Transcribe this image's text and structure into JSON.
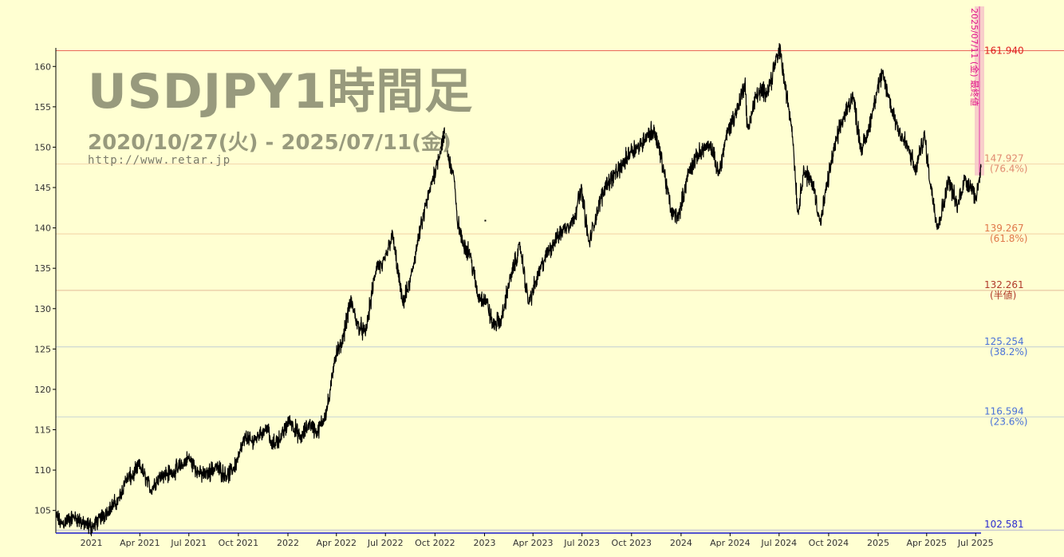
{
  "title": "USDJPY1時間足",
  "subtitle": "2020/10/27(火) - 2025/07/11(金)",
  "url": "http://www.retar.jp",
  "chart_data": {
    "type": "line",
    "title": "USDJPY1時間足",
    "xlabel": "",
    "ylabel": "",
    "ylim": [
      102.2,
      162.3
    ],
    "grid": false,
    "legend": "none",
    "x_ticks": [
      "2021",
      "Apr 2021",
      "Jul 2021",
      "Oct 2021",
      "2022",
      "Apr 2022",
      "Jul 2022",
      "Oct 2022",
      "2023",
      "Apr 2023",
      "Jul 2023",
      "Oct 2023",
      "2024",
      "Apr 2024",
      "Jul 2024",
      "Oct 2024",
      "2025",
      "Apr 2025",
      "Jul 2025"
    ],
    "y_ticks": [
      105,
      110,
      115,
      120,
      125,
      130,
      135,
      140,
      145,
      150,
      155,
      160
    ],
    "series_color": "#000000",
    "series": [
      {
        "x": [
          "2020-10-27",
          "2020-11-05",
          "2020-12-01",
          "2020-12-20",
          "2021-01-05",
          "2021-01-15",
          "2021-02-01",
          "2021-02-20",
          "2021-03-05",
          "2021-03-20",
          "2021-03-31",
          "2021-04-15",
          "2021-04-22",
          "2021-05-10",
          "2021-06-01",
          "2021-06-20",
          "2021-07-01",
          "2021-07-20",
          "2021-08-01",
          "2021-08-20",
          "2021-09-10",
          "2021-09-20",
          "2021-10-01",
          "2021-10-15",
          "2021-10-25",
          "2021-11-10",
          "2021-11-24",
          "2021-12-01",
          "2021-12-20",
          "2022-01-04",
          "2022-01-25",
          "2022-02-10",
          "2022-02-24",
          "2022-03-10",
          "2022-03-20",
          "2022-03-28",
          "2022-04-10",
          "2022-04-28",
          "2022-05-10",
          "2022-05-25",
          "2022-06-15",
          "2022-06-25",
          "2022-07-14",
          "2022-08-02",
          "2022-08-15",
          "2022-09-01",
          "2022-09-22",
          "2022-10-10",
          "2022-10-21",
          "2022-10-25",
          "2022-11-05",
          "2022-11-11",
          "2022-11-20",
          "2022-12-05",
          "2022-12-20",
          "2023-01-05",
          "2023-01-16",
          "2023-02-01",
          "2023-02-15",
          "2023-03-08",
          "2023-03-24",
          "2023-04-10",
          "2023-04-28",
          "2023-05-15",
          "2023-05-30",
          "2023-06-15",
          "2023-06-30",
          "2023-07-14",
          "2023-07-31",
          "2023-08-15",
          "2023-08-31",
          "2023-09-15",
          "2023-09-30",
          "2023-10-15",
          "2023-10-31",
          "2023-11-13",
          "2023-11-30",
          "2023-12-14",
          "2023-12-28",
          "2024-01-15",
          "2024-02-01",
          "2024-02-13",
          "2024-02-28",
          "2024-03-11",
          "2024-03-25",
          "2024-04-15",
          "2024-04-29",
          "2024-05-03",
          "2024-05-20",
          "2024-06-10",
          "2024-06-26",
          "2024-07-03",
          "2024-07-12",
          "2024-07-25",
          "2024-08-05",
          "2024-08-15",
          "2024-09-02",
          "2024-09-16",
          "2024-09-27",
          "2024-10-10",
          "2024-10-25",
          "2024-11-15",
          "2024-11-30",
          "2024-12-10",
          "2024-12-31",
          "2025-01-10",
          "2025-01-25",
          "2025-02-10",
          "2025-02-28",
          "2025-03-11",
          "2025-03-28",
          "2025-04-08",
          "2025-04-22",
          "2025-05-12",
          "2025-05-28",
          "2025-06-10",
          "2025-06-25",
          "2025-07-01",
          "2025-07-11"
        ],
        "y": [
          104.5,
          103.3,
          104.2,
          103.2,
          103.0,
          103.9,
          105.0,
          106.2,
          108.7,
          109.3,
          110.7,
          108.5,
          107.6,
          109.4,
          109.7,
          110.7,
          111.5,
          109.6,
          109.4,
          110.4,
          109.3,
          110.0,
          111.6,
          114.2,
          113.5,
          114.5,
          115.3,
          113.0,
          114.2,
          116.2,
          113.9,
          115.8,
          114.6,
          116.5,
          119.2,
          123.8,
          125.5,
          131.0,
          128.0,
          127.0,
          135.5,
          135.0,
          139.2,
          130.6,
          133.0,
          139.0,
          144.8,
          149.5,
          151.9,
          149.0,
          146.5,
          141.0,
          138.5,
          136.8,
          131.5,
          131.0,
          128.0,
          128.5,
          133.0,
          137.8,
          130.6,
          134.0,
          137.0,
          138.8,
          140.0,
          141.0,
          144.8,
          138.0,
          142.5,
          145.5,
          146.5,
          147.8,
          149.7,
          150.0,
          151.7,
          151.9,
          147.2,
          141.8,
          141.5,
          147.0,
          149.0,
          150.0,
          149.7,
          146.5,
          151.5,
          154.8,
          158.0,
          152.0,
          156.5,
          157.0,
          160.8,
          161.94,
          157.5,
          152.5,
          141.7,
          147.0,
          145.5,
          140.5,
          145.0,
          149.5,
          153.0,
          156.5,
          149.8,
          151.0,
          157.5,
          158.8,
          155.0,
          151.8,
          149.5,
          147.0,
          151.5,
          145.5,
          140.0,
          146.0,
          142.6,
          146.0,
          145.0,
          143.5,
          147.5
        ]
      }
    ],
    "levels": [
      {
        "value": "161.940",
        "label": "",
        "color": "#e02020"
      },
      {
        "value": "147.927",
        "label": "(76.4%)",
        "color": "#e08a70"
      },
      {
        "value": "139.267",
        "label": "(61.8%)",
        "color": "#e0784a"
      },
      {
        "value": "132.261",
        "label": "(半値)",
        "color": "#b03a2a"
      },
      {
        "value": "125.254",
        "label": "(38.2%)",
        "color": "#4a72d8"
      },
      {
        "value": "116.594",
        "label": "(23.6%)",
        "color": "#4a72d8"
      },
      {
        "value": "102.581",
        "label": "",
        "color": "#2a2ad0"
      }
    ],
    "vertical_label": "2025/07/11 (金) 最終値"
  }
}
